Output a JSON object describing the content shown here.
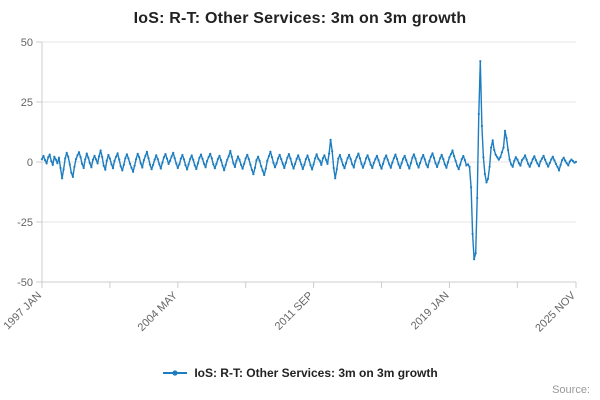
{
  "title": "IoS: R-T: Other Services: 3m on 3m growth",
  "legend": {
    "label": "IoS: R-T: Other Services: 3m on 3m growth"
  },
  "footer": {
    "source": "Source:"
  },
  "colors": {
    "line": "#1d7dbf",
    "axis": "#cccccc",
    "grid": "#e6e6e6",
    "tick_label": "#666666",
    "title": "#222222"
  },
  "chart_data": {
    "type": "line",
    "title": "IoS: R-T: Other Services: 3m on 3m growth",
    "x_unit": "month",
    "x_range": [
      "1997 JAN",
      "2025 NOV"
    ],
    "x_tick_labels": [
      "1997 JAN",
      "2004 MAY",
      "2011 SEP",
      "2019 JAN",
      "2025 NOV"
    ],
    "x_tick_indices": [
      0,
      88,
      176,
      264,
      346
    ],
    "x_minor_tick_indices": [
      0,
      44,
      88,
      132,
      176,
      220,
      264,
      308,
      346
    ],
    "ylim": [
      -50,
      50
    ],
    "y_ticks": [
      -50,
      -25,
      0,
      25,
      50
    ],
    "grid": "horizontal",
    "legend_position": "bottom",
    "series": [
      {
        "name": "IoS: R-T: Other Services: 3m on 3m growth",
        "values": [
          1.2,
          2.5,
          0.8,
          -0.6,
          1.9,
          3.1,
          0.4,
          -1.2,
          2.2,
          1.0,
          -0.5,
          1.8,
          -2.5,
          -6.8,
          -3.1,
          1.5,
          3.8,
          2.2,
          -1.0,
          -4.5,
          -6.2,
          -2.0,
          1.2,
          2.8,
          4.1,
          2.0,
          -0.8,
          -2.5,
          1.1,
          3.5,
          1.8,
          -0.4,
          -2.2,
          0.9,
          2.6,
          1.1,
          -0.6,
          2.4,
          4.8,
          2.1,
          -1.5,
          -3.2,
          0.6,
          2.9,
          1.4,
          -0.9,
          -2.6,
          0.5,
          2.2,
          3.6,
          1.0,
          -1.8,
          -3.5,
          -1.2,
          1.6,
          3.2,
          1.5,
          -0.7,
          -2.4,
          -4.1,
          -1.5,
          1.2,
          3.4,
          2.0,
          -0.6,
          -2.3,
          0.8,
          2.5,
          4.2,
          1.6,
          -1.1,
          -3.0,
          -1.2,
          1.0,
          2.8,
          1.2,
          -0.9,
          -2.7,
          -0.3,
          1.9,
          3.3,
          1.4,
          -0.8,
          0.6,
          2.3,
          3.8,
          1.6,
          -0.7,
          -2.5,
          -0.9,
          1.4,
          2.9,
          1.1,
          -1.3,
          -3.1,
          -1.0,
          1.3,
          2.7,
          0.9,
          -1.4,
          -2.9,
          -0.6,
          1.7,
          3.1,
          1.3,
          -0.8,
          -2.2,
          0.4,
          2.1,
          3.4,
          1.5,
          -0.9,
          -2.6,
          -0.8,
          1.2,
          2.6,
          0.8,
          -1.6,
          -3.4,
          -1.2,
          0.9,
          2.4,
          4.6,
          2.2,
          -0.5,
          -2.1,
          0.6,
          2.3,
          0.9,
          -1.2,
          -2.8,
          -0.7,
          1.5,
          3.0,
          1.2,
          -1.1,
          -3.3,
          -5.1,
          -2.4,
          0.8,
          2.2,
          0.5,
          -1.8,
          -3.6,
          -5.4,
          -2.8,
          0.6,
          2.4,
          4.3,
          2.0,
          -0.4,
          -2.2,
          -0.6,
          1.5,
          3.0,
          1.2,
          -0.8,
          -2.5,
          -0.4,
          1.8,
          3.3,
          1.4,
          -0.9,
          -2.7,
          -0.8,
          1.3,
          2.8,
          1.0,
          -1.0,
          -2.9,
          -1.1,
          1.2,
          2.7,
          0.9,
          -1.3,
          -3.1,
          -0.9,
          1.6,
          3.2,
          1.3,
          0.6,
          -1.2,
          1.5,
          2.8,
          0.9,
          -0.8,
          3.5,
          9.2,
          4.5,
          -2.5,
          -6.8,
          -3.0,
          1.4,
          2.9,
          1.0,
          -1.2,
          -2.6,
          -0.5,
          1.6,
          3.0,
          1.2,
          -0.9,
          -2.3,
          0.5,
          2.0,
          3.5,
          1.6,
          -0.8,
          -2.4,
          -0.6,
          1.5,
          2.8,
          1.0,
          -1.1,
          -2.5,
          -0.4,
          1.2,
          2.6,
          0.8,
          -1.3,
          -2.8,
          -0.7,
          1.4,
          2.7,
          0.9,
          -1.0,
          -2.4,
          -0.3,
          1.6,
          3.1,
          1.3,
          -0.9,
          -2.5,
          -0.6,
          1.3,
          2.6,
          0.8,
          -1.2,
          -2.7,
          -0.5,
          1.8,
          3.2,
          1.4,
          -0.8,
          -2.3,
          -0.4,
          1.5,
          2.9,
          1.1,
          -1.0,
          -2.2,
          0.4,
          2.2,
          3.6,
          1.7,
          -0.6,
          -2.1,
          -0.3,
          1.6,
          3.0,
          1.2,
          -0.9,
          -2.4,
          -0.2,
          1.9,
          3.3,
          4.8,
          2.4,
          0.5,
          -1.6,
          -3.0,
          -1.1,
          1.2,
          2.5,
          0.8,
          -1.4,
          -1.0,
          -2.0,
          -10.5,
          -30.0,
          -40.5,
          -38.0,
          -15.0,
          20.0,
          42.0,
          15.0,
          2.0,
          -5.0,
          -8.5,
          -7.0,
          -2.0,
          6.0,
          9.0,
          5.0,
          3.0,
          2.0,
          1.0,
          2.0,
          4.0,
          6.0,
          13.0,
          10.0,
          5.0,
          1.0,
          -1.0,
          -2.0,
          0.5,
          2.0,
          1.0,
          -0.5,
          -1.5,
          0.8,
          1.5,
          2.8,
          1.0,
          -0.8,
          -2.0,
          -0.5,
          1.2,
          2.4,
          0.8,
          -0.6,
          -1.8,
          0.3,
          1.4,
          2.6,
          0.9,
          -0.7,
          -1.9,
          -0.4,
          1.1,
          2.2,
          0.7,
          -0.8,
          -2.0,
          -3.5,
          -1.2,
          0.8,
          1.8,
          0.6,
          -0.5,
          -1.4,
          0.2,
          1.0,
          0.4,
          -0.3,
          0.1
        ]
      }
    ]
  }
}
